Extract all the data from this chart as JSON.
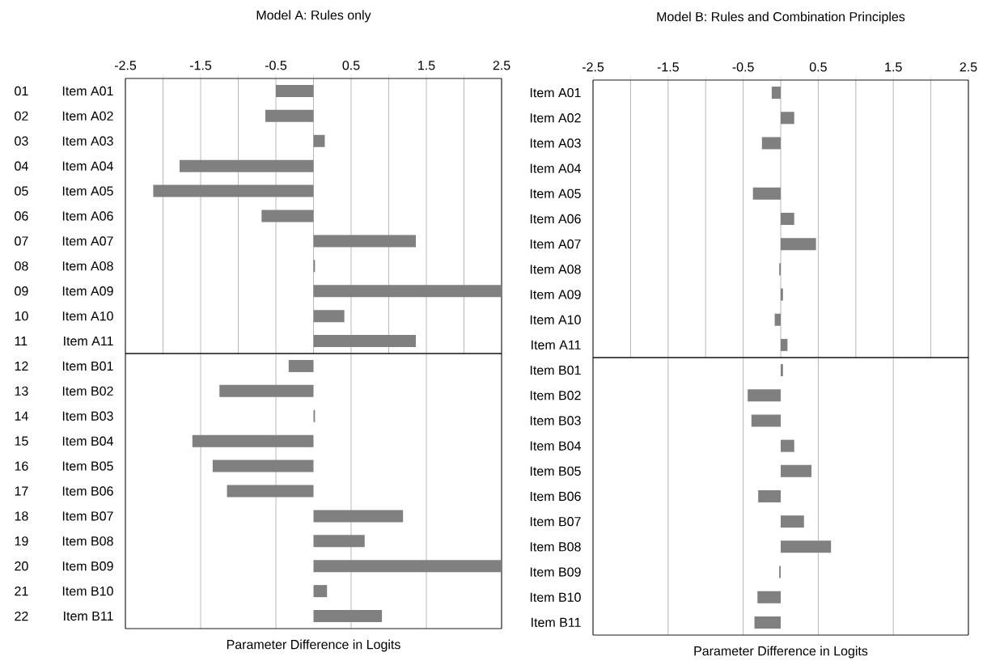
{
  "chart_data": [
    {
      "type": "bar",
      "orientation": "horizontal",
      "title": "Model A: Rules only",
      "categories": [
        "Item A01",
        "Item A02",
        "Item A03",
        "Item A04",
        "Item A05",
        "Item A06",
        "Item A07",
        "Item A08",
        "Item A09",
        "Item A10",
        "Item A11"
      ],
      "values": [
        -0.5,
        -0.64,
        0.15,
        -1.78,
        -2.13,
        -0.69,
        1.36,
        0.02,
        2.5,
        0.41,
        1.36
      ],
      "color": "#808080",
      "xlim": [
        -2.5,
        2.5
      ],
      "xticks": [
        -2.5,
        {
          "value": -2,
          "label": null
        },
        -1.5,
        {
          "value": -1,
          "label": null
        },
        -0.5,
        {
          "value": 0,
          "label": null
        },
        0.5,
        {
          "value": 1,
          "label": null
        },
        1.5,
        {
          "value": 2,
          "label": null
        },
        2.5
      ],
      "grid": "x",
      "annotations": [
        "01",
        "02",
        "03",
        "04",
        "05",
        "06",
        "07",
        "08",
        "09",
        "10",
        "11"
      ]
    },
    {
      "type": "bar",
      "orientation": "horizontal",
      "xlabel": "Parameter Difference in Logits",
      "categories": [
        "Item B01",
        "Item B02",
        "Item B03",
        "Item B04",
        "Item B05",
        "Item B06",
        "Item B07",
        "Item B08",
        "Item B09",
        "Item B10",
        "Item B11"
      ],
      "values": [
        -0.33,
        -1.25,
        0.02,
        -1.61,
        -1.34,
        -1.15,
        1.19,
        0.68,
        2.5,
        0.18,
        0.91
      ],
      "color": "#808080",
      "xlim": [
        -2.5,
        2.5
      ],
      "xticks": [
        -2.5,
        -1.5,
        -0.5,
        0.5,
        1.5,
        2.5
      ],
      "tick_labels": "y",
      "grid": "x",
      "annotations": [
        "12",
        "13",
        "14",
        "15",
        "16",
        "17",
        "18",
        "19",
        "20",
        "21",
        "22"
      ]
    },
    {
      "type": "bar",
      "orientation": "horizontal",
      "title": "Model B: Rules and Combination Principles",
      "categories": [
        "Item A01",
        "Item A02",
        "Item A03",
        "Item A04",
        "Item A05",
        "Item A06",
        "Item A07",
        "Item A08",
        "Item A09",
        "Item A10",
        "Item A11"
      ],
      "values": [
        -0.12,
        0.18,
        -0.25,
        0,
        -0.37,
        0.18,
        0.47,
        -0.02,
        0.03,
        -0.08,
        0.09
      ],
      "color": "#808080",
      "xlim": [
        -2.5,
        2.5
      ],
      "xticks": [
        -2.5,
        {
          "value": -2,
          "label": null
        },
        -1.5,
        {
          "value": -1,
          "label": null
        },
        -0.5,
        {
          "value": 0,
          "label": null
        },
        0.5,
        {
          "value": 1,
          "label": null
        },
        1.5,
        {
          "value": 2,
          "label": null
        },
        2.5
      ],
      "grid": "x"
    },
    {
      "type": "bar",
      "orientation": "horizontal",
      "xlabel": "Parameter Difference in Logits",
      "categories": [
        "Item B01",
        "Item B02",
        "Item B03",
        "Item B04",
        "Item B05",
        "Item B06",
        "Item B07",
        "Item B08",
        "Item B09",
        "Item B10",
        "Item B11"
      ],
      "values": [
        0.03,
        -0.44,
        -0.39,
        0.18,
        0.41,
        -0.3,
        0.31,
        0.67,
        -0.02,
        -0.31,
        -0.35
      ],
      "color": "#808080",
      "xlim": [
        -2.5,
        2.5
      ],
      "xticks": [
        -2.5,
        -1.5,
        -0.5,
        0.5,
        1.5,
        2.5
      ],
      "tick_labels": "y",
      "grid": "x"
    }
  ]
}
